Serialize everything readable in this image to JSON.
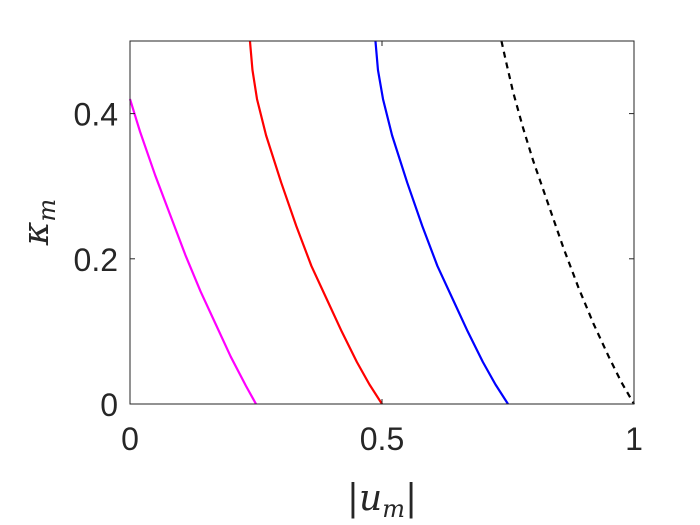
{
  "chart_data": {
    "type": "line",
    "xlabel": "|u_m|",
    "ylabel": "κ_m",
    "xlim": [
      0,
      1
    ],
    "ylim": [
      0,
      0.5
    ],
    "xticks": [
      "0",
      "0.5",
      "1"
    ],
    "yticks": [
      "0",
      "0.2",
      "0.4"
    ],
    "grid": false,
    "series": [
      {
        "color": "#ff00ff",
        "style": "solid",
        "x": [
          0.0,
          0.02,
          0.05,
          0.08,
          0.11,
          0.14,
          0.17,
          0.2,
          0.23,
          0.25
        ],
        "y": [
          0.42,
          0.375,
          0.315,
          0.26,
          0.205,
          0.155,
          0.11,
          0.065,
          0.025,
          0.0
        ]
      },
      {
        "color": "#ff0000",
        "style": "solid",
        "x": [
          0.238,
          0.243,
          0.252,
          0.27,
          0.3,
          0.33,
          0.36,
          0.39,
          0.42,
          0.45,
          0.475,
          0.5
        ],
        "y": [
          0.5,
          0.46,
          0.42,
          0.37,
          0.305,
          0.245,
          0.19,
          0.145,
          0.1,
          0.058,
          0.027,
          0.0
        ]
      },
      {
        "color": "#0000ff",
        "style": "solid",
        "x": [
          0.487,
          0.492,
          0.502,
          0.52,
          0.55,
          0.58,
          0.61,
          0.64,
          0.67,
          0.7,
          0.725,
          0.75
        ],
        "y": [
          0.5,
          0.46,
          0.42,
          0.37,
          0.305,
          0.245,
          0.19,
          0.145,
          0.1,
          0.058,
          0.027,
          0.0
        ]
      },
      {
        "color": "#000000",
        "style": "dashed",
        "x": [
          0.737,
          0.745,
          0.76,
          0.78,
          0.8,
          0.83,
          0.86,
          0.89,
          0.92,
          0.95,
          0.975,
          1.0
        ],
        "y": [
          0.5,
          0.475,
          0.43,
          0.38,
          0.335,
          0.275,
          0.215,
          0.16,
          0.11,
          0.065,
          0.03,
          0.0
        ]
      }
    ]
  }
}
